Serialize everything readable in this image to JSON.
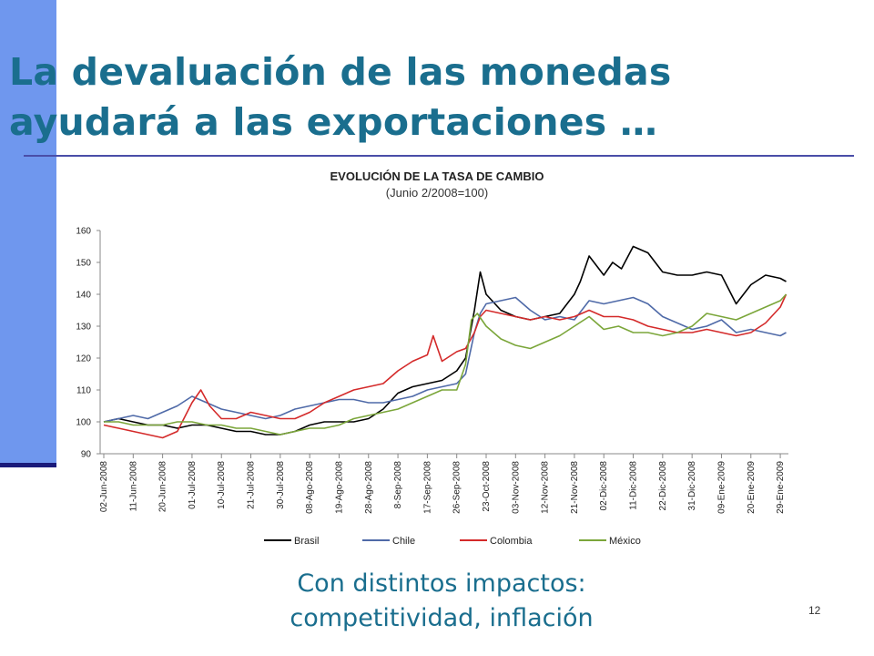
{
  "slide": {
    "title_line1": "La devaluación de las monedas",
    "title_line2": "ayudará a las exportaciones …",
    "caption_line1": "Con distintos impactos:",
    "caption_line2": "competitividad, inflación",
    "slide_number": "12"
  },
  "chart_data": {
    "type": "line",
    "title": "EVOLUCIÓN DE LA TASA DE CAMBIO",
    "subtitle": "(Junio 2/2008=100)",
    "ylim": [
      90,
      160
    ],
    "yticks": [
      90,
      100,
      110,
      120,
      130,
      140,
      150,
      160
    ],
    "xticks": [
      "02-Jun-2008",
      "11-Jun-2008",
      "20-Jun-2008",
      "01-Jul-2008",
      "10-Jul-2008",
      "21-Jul-2008",
      "30-Jul-2008",
      "08-Ago-2008",
      "19-Ago-2008",
      "28-Ago-2008",
      "8-Sep-2008",
      "17-Sep-2008",
      "26-Sep-2008",
      "23-Oct-2008",
      "03-Nov-2008",
      "12-Nov-2008",
      "21-Nov-2008",
      "02-Dic-2008",
      "11-Dic-2008",
      "22-Dic-2008",
      "31-Dic-2008",
      "09-Ene-2009",
      "20-Ene-2009",
      "29-Ene-2009"
    ],
    "legend_position": "bottom",
    "series": [
      {
        "name": "Brasil",
        "color": "#000000",
        "x": [
          0,
          0.5,
          1,
          1.5,
          2,
          2.5,
          3,
          3.5,
          4,
          4.5,
          5,
          5.5,
          6,
          6.5,
          7,
          7.5,
          8,
          8.5,
          9,
          9.5,
          10,
          10.5,
          11,
          11.5,
          12,
          12.3,
          12.6,
          12.8,
          13,
          13.5,
          14,
          14.5,
          15,
          15.5,
          16,
          16.2,
          16.5,
          17,
          17.3,
          17.6,
          18,
          18.5,
          19,
          19.5,
          20,
          20.5,
          21,
          21.5,
          22,
          22.5,
          23,
          23.2
        ],
        "y": [
          100,
          101,
          100,
          99,
          99,
          98,
          99,
          99,
          98,
          97,
          97,
          96,
          96,
          97,
          99,
          100,
          100,
          100,
          101,
          104,
          109,
          111,
          112,
          113,
          116,
          120,
          135,
          147,
          140,
          135,
          133,
          132,
          133,
          134,
          140,
          144,
          152,
          146,
          150,
          148,
          155,
          153,
          147,
          146,
          146,
          147,
          146,
          137,
          143,
          146,
          145,
          144
        ]
      },
      {
        "name": "Chile",
        "color": "#4f6aa8",
        "x": [
          0,
          0.5,
          1,
          1.5,
          2,
          2.5,
          3,
          3.5,
          4,
          4.5,
          5,
          5.5,
          6,
          6.5,
          7,
          7.5,
          8,
          8.5,
          9,
          9.5,
          10,
          10.5,
          11,
          11.5,
          12,
          12.3,
          12.6,
          12.8,
          13,
          13.5,
          14,
          14.5,
          15,
          15.5,
          16,
          16.5,
          17,
          17.5,
          18,
          18.5,
          19,
          19.5,
          20,
          20.5,
          21,
          21.5,
          22,
          22.5,
          23,
          23.2
        ],
        "y": [
          100,
          101,
          102,
          101,
          103,
          105,
          108,
          106,
          104,
          103,
          102,
          101,
          102,
          104,
          105,
          106,
          107,
          107,
          106,
          106,
          107,
          108,
          110,
          111,
          112,
          115,
          128,
          134,
          137,
          138,
          139,
          135,
          132,
          133,
          132,
          138,
          137,
          138,
          139,
          137,
          133,
          131,
          129,
          130,
          132,
          128,
          129,
          128,
          127,
          128
        ]
      },
      {
        "name": "Colombia",
        "color": "#d42a2a",
        "x": [
          0,
          0.5,
          1,
          1.5,
          2,
          2.5,
          3,
          3.3,
          3.6,
          4,
          4.5,
          5,
          5.5,
          6,
          6.5,
          7,
          7.5,
          8,
          8.5,
          9,
          9.5,
          10,
          10.5,
          11,
          11.2,
          11.5,
          12,
          12.3,
          12.6,
          12.8,
          13,
          13.5,
          14,
          14.5,
          15,
          15.5,
          16,
          16.5,
          17,
          17.5,
          18,
          18.5,
          19,
          19.5,
          20,
          20.5,
          21,
          21.5,
          22,
          22.5,
          23,
          23.2
        ],
        "y": [
          99,
          98,
          97,
          96,
          95,
          97,
          106,
          110,
          105,
          101,
          101,
          103,
          102,
          101,
          101,
          103,
          106,
          108,
          110,
          111,
          112,
          116,
          119,
          121,
          127,
          119,
          122,
          123,
          128,
          133,
          135,
          134,
          133,
          132,
          133,
          132,
          133,
          135,
          133,
          133,
          132,
          130,
          129,
          128,
          128,
          129,
          128,
          127,
          128,
          131,
          136,
          140
        ]
      },
      {
        "name": "México",
        "color": "#7ba63a",
        "x": [
          0,
          0.5,
          1,
          1.5,
          2,
          2.5,
          3,
          3.5,
          4,
          4.5,
          5,
          5.5,
          6,
          6.5,
          7,
          7.5,
          8,
          8.5,
          9,
          9.5,
          10,
          10.5,
          11,
          11.5,
          12,
          12.3,
          12.5,
          12.7,
          13,
          13.5,
          14,
          14.5,
          15,
          15.5,
          16,
          16.5,
          17,
          17.5,
          18,
          18.5,
          19,
          19.5,
          20,
          20.5,
          21,
          21.5,
          22,
          22.5,
          23,
          23.2
        ],
        "y": [
          100,
          100,
          99,
          99,
          99,
          100,
          100,
          99,
          99,
          98,
          98,
          97,
          96,
          97,
          98,
          98,
          99,
          101,
          102,
          103,
          104,
          106,
          108,
          110,
          110,
          118,
          132,
          134,
          130,
          126,
          124,
          123,
          125,
          127,
          130,
          133,
          129,
          130,
          128,
          128,
          127,
          128,
          130,
          134,
          133,
          132,
          134,
          136,
          138,
          140
        ]
      }
    ]
  }
}
